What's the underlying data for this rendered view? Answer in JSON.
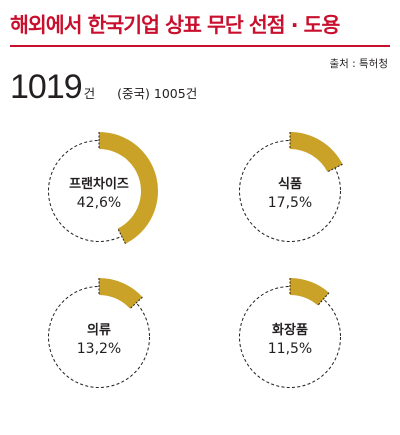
{
  "header": {
    "title": "해외에서 한국기업 상표 무단 선점 · 도용",
    "source": "출처 : 특허청"
  },
  "summary": {
    "total_value": "1019",
    "total_unit": "건",
    "china_text": "(중국) 1005건"
  },
  "colors": {
    "accent": "#c8102e",
    "fill": "#c9a227",
    "ring_outline": "#231f20"
  },
  "chart_data": [
    {
      "type": "pie",
      "category": "프랜차이즈",
      "value": 42.6,
      "label": "42,6%"
    },
    {
      "type": "pie",
      "category": "식품",
      "value": 17.5,
      "label": "17,5%"
    },
    {
      "type": "pie",
      "category": "의류",
      "value": 13.2,
      "label": "13,2%"
    },
    {
      "type": "pie",
      "category": "화장품",
      "value": 11.5,
      "label": "11,5%"
    }
  ]
}
